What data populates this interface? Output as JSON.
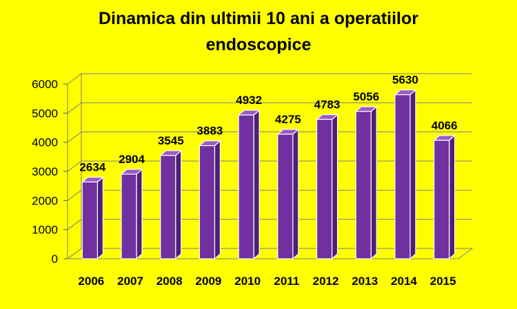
{
  "chart_data": {
    "type": "bar",
    "title_lines": [
      "Dinamica din ultimii 10 ani a operatiilor",
      "endoscopice"
    ],
    "xlabel": "",
    "ylabel": "",
    "categories": [
      "2006",
      "2007",
      "2008",
      "2009",
      "2010",
      "2011",
      "2012",
      "2013",
      "2014",
      "2015"
    ],
    "values": [
      2634,
      2904,
      3545,
      3883,
      4932,
      4275,
      4783,
      5056,
      5630,
      4066
    ],
    "ylim": [
      0,
      6000
    ],
    "yticks": [
      "0",
      "1000",
      "2000",
      "3000",
      "4000",
      "5000",
      "6000"
    ],
    "grid": true,
    "legend": "none",
    "colors": {
      "background": "#ffff00",
      "bar_front": "#7030a0",
      "bar_side": "#4f1f78",
      "bar_top": "#9b5cc6",
      "bar_outline": "#ffffff",
      "grid": "#7f7f7f"
    }
  }
}
